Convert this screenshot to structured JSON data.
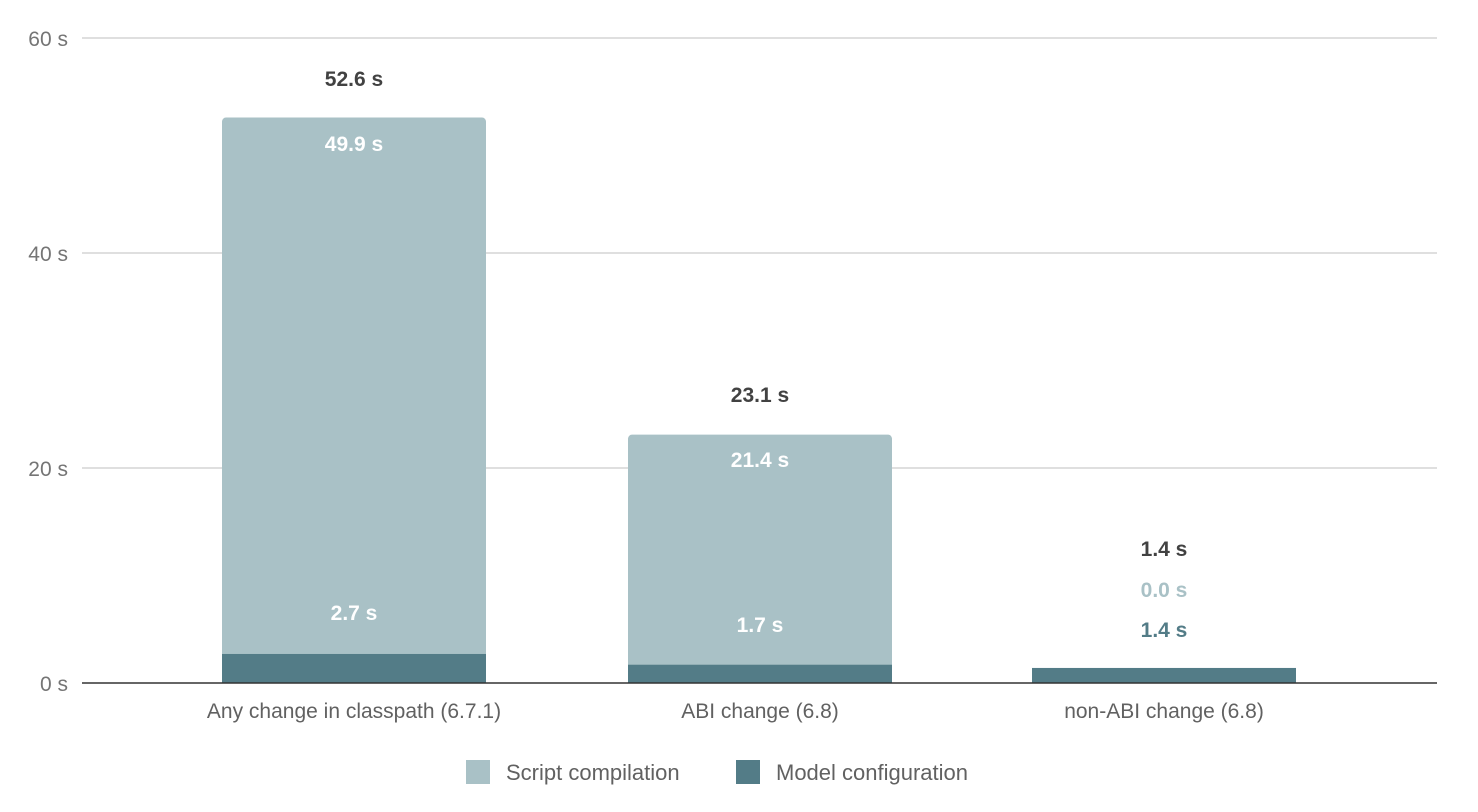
{
  "chart_data": {
    "type": "bar",
    "stacked": true,
    "categories": [
      "Any change in classpath (6.7.1)",
      "ABI change (6.8)",
      "non-ABI change (6.8)"
    ],
    "series": [
      {
        "name": "Model configuration",
        "color": "#537c87",
        "values": [
          2.7,
          1.7,
          1.4
        ],
        "labels": [
          "2.7 s",
          "1.7 s",
          "1.4 s"
        ]
      },
      {
        "name": "Script compilation",
        "color": "#a9c1c6",
        "values": [
          49.9,
          21.4,
          0.0
        ],
        "labels": [
          "49.9 s",
          "21.4 s",
          "0.0 s"
        ]
      }
    ],
    "totals": [
      52.6,
      23.1,
      1.4
    ],
    "total_labels": [
      "52.6 s",
      "23.1 s",
      "1.4 s"
    ],
    "ylim": [
      0,
      60
    ],
    "yticks": [
      0,
      20,
      40,
      60
    ],
    "ytick_labels": [
      "0 s",
      "20 s",
      "40 s",
      "60 s"
    ],
    "grid": true,
    "legend": {
      "position": "bottom",
      "items": [
        "Script compilation",
        "Model configuration"
      ]
    },
    "title": "",
    "xlabel": "",
    "ylabel": ""
  }
}
